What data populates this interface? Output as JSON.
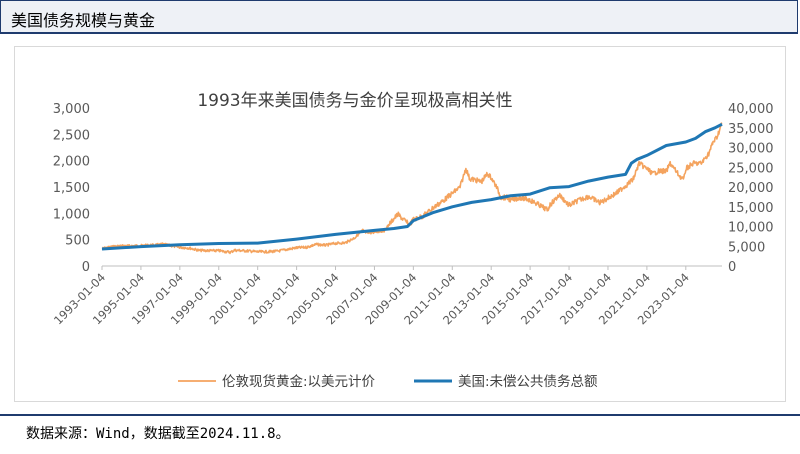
{
  "header": {
    "title": "美国债务规模与黄金"
  },
  "footer": {
    "source": "数据来源：Wind，数据截至2024.11.8。"
  },
  "colors": {
    "gold": "#f4a35e",
    "debt": "#1f77b4",
    "header_rule": "#1f3b6e"
  },
  "chart_data": {
    "type": "line",
    "title": "1993年来美国债务与金价呈现极高相关性",
    "x_tick_labels": [
      "1993-01-04",
      "1995-01-04",
      "1997-01-04",
      "1999-01-04",
      "2001-01-04",
      "2003-01-04",
      "2005-01-04",
      "2007-01-04",
      "2009-01-04",
      "2011-01-04",
      "2013-01-04",
      "2015-01-04",
      "2017-01-04",
      "2019-01-04",
      "2021-01-04",
      "2023-01-04"
    ],
    "y_left": {
      "ticks": [
        "0",
        "500",
        "1,000",
        "1,500",
        "2,000",
        "2,500",
        "3,000"
      ],
      "ylim": [
        0,
        3000
      ]
    },
    "y_right": {
      "ticks": [
        "0",
        "5,000",
        "10,000",
        "15,000",
        "20,000",
        "25,000",
        "30,000",
        "35,000",
        "40,000"
      ],
      "ylim": [
        0,
        40000
      ]
    },
    "x_range": [
      1993.0,
      2024.86
    ],
    "legend": {
      "position": "bottom"
    },
    "series": [
      {
        "name": "伦敦现货黄金:以美元计价",
        "axis": "left",
        "x": [
          1993.0,
          1993.6,
          1994.0,
          1995.0,
          1996.0,
          1996.1,
          1997.0,
          1997.5,
          1998.0,
          1999.0,
          1999.6,
          1999.8,
          2000.5,
          2001.0,
          2001.5,
          2002.0,
          2002.5,
          2003.0,
          2003.5,
          2004.0,
          2004.5,
          2005.0,
          2005.5,
          2006.0,
          2006.4,
          2006.6,
          2006.9,
          2007.0,
          2007.5,
          2008.0,
          2008.2,
          2008.5,
          2008.8,
          2009.0,
          2009.5,
          2010.0,
          2010.5,
          2011.0,
          2011.4,
          2011.7,
          2011.9,
          2012.0,
          2012.5,
          2012.8,
          2013.0,
          2013.3,
          2013.5,
          2013.8,
          2014.0,
          2014.5,
          2015.0,
          2015.5,
          2015.9,
          2016.0,
          2016.5,
          2017.0,
          2017.5,
          2018.0,
          2018.6,
          2019.0,
          2019.5,
          2019.8,
          2020.0,
          2020.3,
          2020.6,
          2020.9,
          2021.0,
          2021.3,
          2021.6,
          2022.0,
          2022.2,
          2022.7,
          2022.9,
          2023.0,
          2023.4,
          2023.8,
          2024.0,
          2024.2,
          2024.4,
          2024.6,
          2024.8,
          2024.86
        ],
        "y": [
          330,
          370,
          380,
          385,
          405,
          415,
          355,
          340,
          295,
          290,
          260,
          300,
          285,
          270,
          270,
          280,
          315,
          345,
          355,
          410,
          395,
          430,
          440,
          540,
          680,
          620,
          640,
          640,
          670,
          900,
          980,
          880,
          780,
          880,
          950,
          1100,
          1230,
          1380,
          1500,
          1850,
          1650,
          1650,
          1600,
          1750,
          1680,
          1480,
          1300,
          1300,
          1250,
          1300,
          1250,
          1150,
          1060,
          1150,
          1350,
          1150,
          1250,
          1320,
          1200,
          1290,
          1400,
          1500,
          1550,
          1650,
          1950,
          1870,
          1850,
          1750,
          1800,
          1800,
          1950,
          1700,
          1640,
          1850,
          1950,
          1950,
          2050,
          2150,
          2350,
          2450,
          2650,
          2700
        ]
      },
      {
        "name": "美国:未偿公共债务总额",
        "axis": "right",
        "x": [
          1993.0,
          1995.0,
          1997.0,
          1999.0,
          2001.0,
          2003.0,
          2005.0,
          2007.0,
          2008.0,
          2008.7,
          2009.0,
          2010.0,
          2011.0,
          2012.0,
          2013.0,
          2014.0,
          2015.0,
          2016.0,
          2017.0,
          2018.0,
          2019.0,
          2019.9,
          2020.2,
          2020.5,
          2021.0,
          2022.0,
          2023.0,
          2023.5,
          2024.0,
          2024.5,
          2024.86
        ],
        "y": [
          4300,
          4900,
          5400,
          5700,
          5800,
          6800,
          8000,
          9000,
          9500,
          10000,
          11500,
          13500,
          15000,
          16100,
          16800,
          17800,
          18200,
          19800,
          20100,
          21500,
          22500,
          23200,
          26000,
          27000,
          28000,
          30500,
          31400,
          32300,
          34000,
          35000,
          35900
        ]
      }
    ]
  }
}
